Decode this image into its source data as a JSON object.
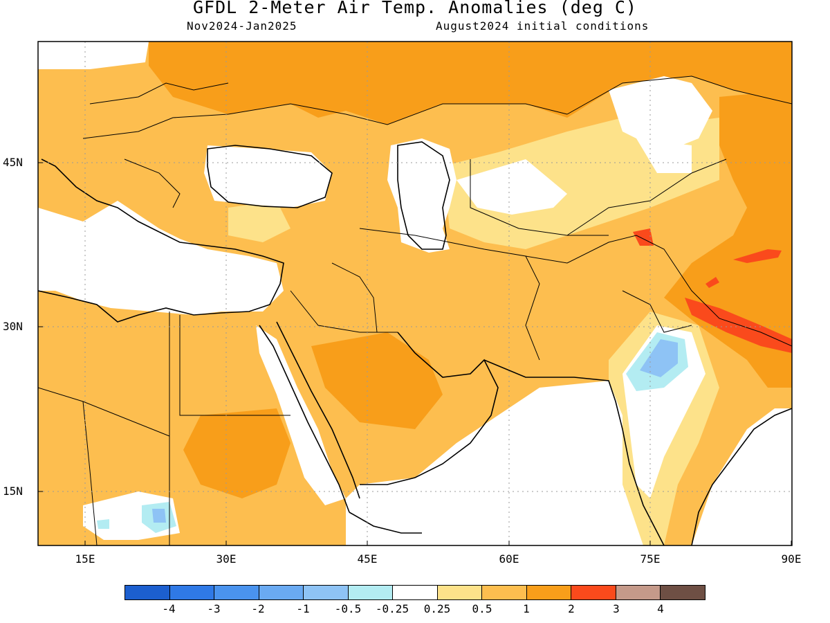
{
  "title": "GFDL 2-Meter Air Temp. Anomalies (deg C)",
  "subtitle_left": "Nov2024-Jan2025",
  "subtitle_right": "August2024 initial conditions",
  "y_ticks": [
    {
      "label": "45N",
      "lat": 45
    },
    {
      "label": "30N",
      "lat": 30
    },
    {
      "label": "15N",
      "lat": 15
    }
  ],
  "x_ticks": [
    {
      "label": "15E",
      "lon": 15
    },
    {
      "label": "30E",
      "lon": 30
    },
    {
      "label": "45E",
      "lon": 45
    },
    {
      "label": "60E",
      "lon": 60
    },
    {
      "label": "75E",
      "lon": 75
    },
    {
      "label": "90E",
      "lon": 90
    }
  ],
  "colorbar": {
    "colors": [
      "#1c5fcf",
      "#2f79e6",
      "#4a93ee",
      "#6aaaf2",
      "#8ec3f5",
      "#b3ecf2",
      "#ffffff",
      "#fde28a",
      "#fdbe4f",
      "#f89e1a",
      "#fa4a1c",
      "#c59a8a",
      "#6e4f44"
    ],
    "labels": [
      "-4",
      "-3",
      "-2",
      "-1",
      "-0.5",
      "-0.25",
      "0.25",
      "0.5",
      "1",
      "2",
      "3",
      "4"
    ]
  },
  "legend_colors": {
    "neutral": "#ffffff",
    "light_yellow": "#fde28a",
    "light_orange": "#fdbe4f",
    "orange": "#f89e1a",
    "red": "#fa4a1c",
    "light_blue": "#8ec3f5",
    "cyan": "#b3ecf2"
  }
}
